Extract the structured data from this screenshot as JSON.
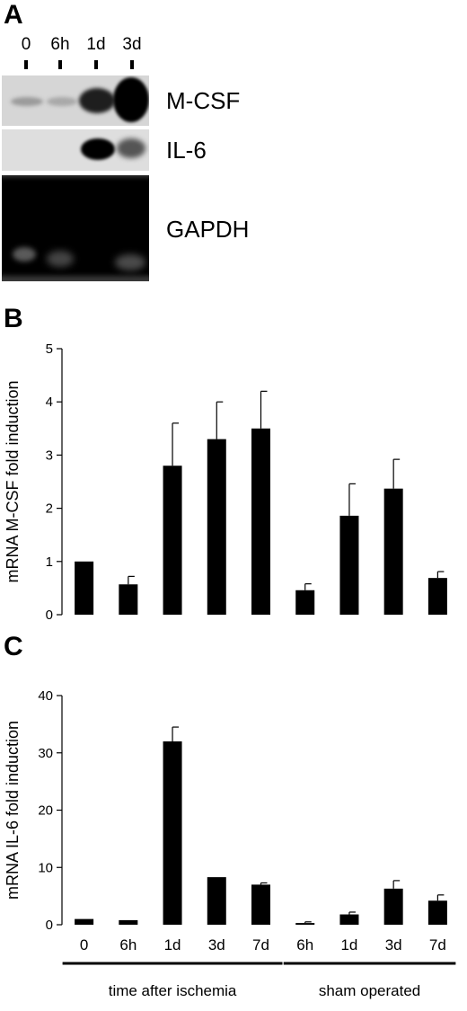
{
  "panels": {
    "a": "A",
    "b": "B",
    "c": "C"
  },
  "blot": {
    "lanes": [
      "0",
      "6h",
      "1d",
      "3d"
    ],
    "rows": [
      "M-CSF",
      "IL-6",
      "GAPDH"
    ]
  },
  "groups": {
    "ischemia": "time after ischemia",
    "sham": "sham operated"
  },
  "chart_data": [
    {
      "type": "bar",
      "categories": [
        "0",
        "6h",
        "1d",
        "3d",
        "7d",
        "6h",
        "1d",
        "3d",
        "7d"
      ],
      "values": [
        1.0,
        0.57,
        2.8,
        3.3,
        3.5,
        0.46,
        1.86,
        2.37,
        0.69
      ],
      "errors": [
        0.0,
        0.15,
        0.8,
        0.7,
        0.7,
        0.12,
        0.6,
        0.55,
        0.12
      ],
      "ylabel": "mRNA M-CSF fold induction",
      "ylim": [
        0,
        5
      ],
      "yticks": [
        "0",
        "1",
        "2",
        "3",
        "4",
        "5"
      ],
      "xtick_labels_shown": false,
      "bar_color": "#000000"
    },
    {
      "type": "bar",
      "categories": [
        "0",
        "6h",
        "1d",
        "3d",
        "7d",
        "6h",
        "1d",
        "3d",
        "7d"
      ],
      "values": [
        1.0,
        0.8,
        32.0,
        8.3,
        7.0,
        0.3,
        1.8,
        6.3,
        4.2
      ],
      "errors": [
        0.0,
        0.0,
        2.5,
        0.0,
        0.3,
        0.2,
        0.4,
        1.4,
        1.0
      ],
      "ylabel": "mRNA IL-6 fold induction",
      "ylim": [
        0,
        40
      ],
      "yticks": [
        "0",
        "10",
        "20",
        "30",
        "40"
      ],
      "xtick_labels_shown": true,
      "bar_color": "#000000"
    }
  ]
}
